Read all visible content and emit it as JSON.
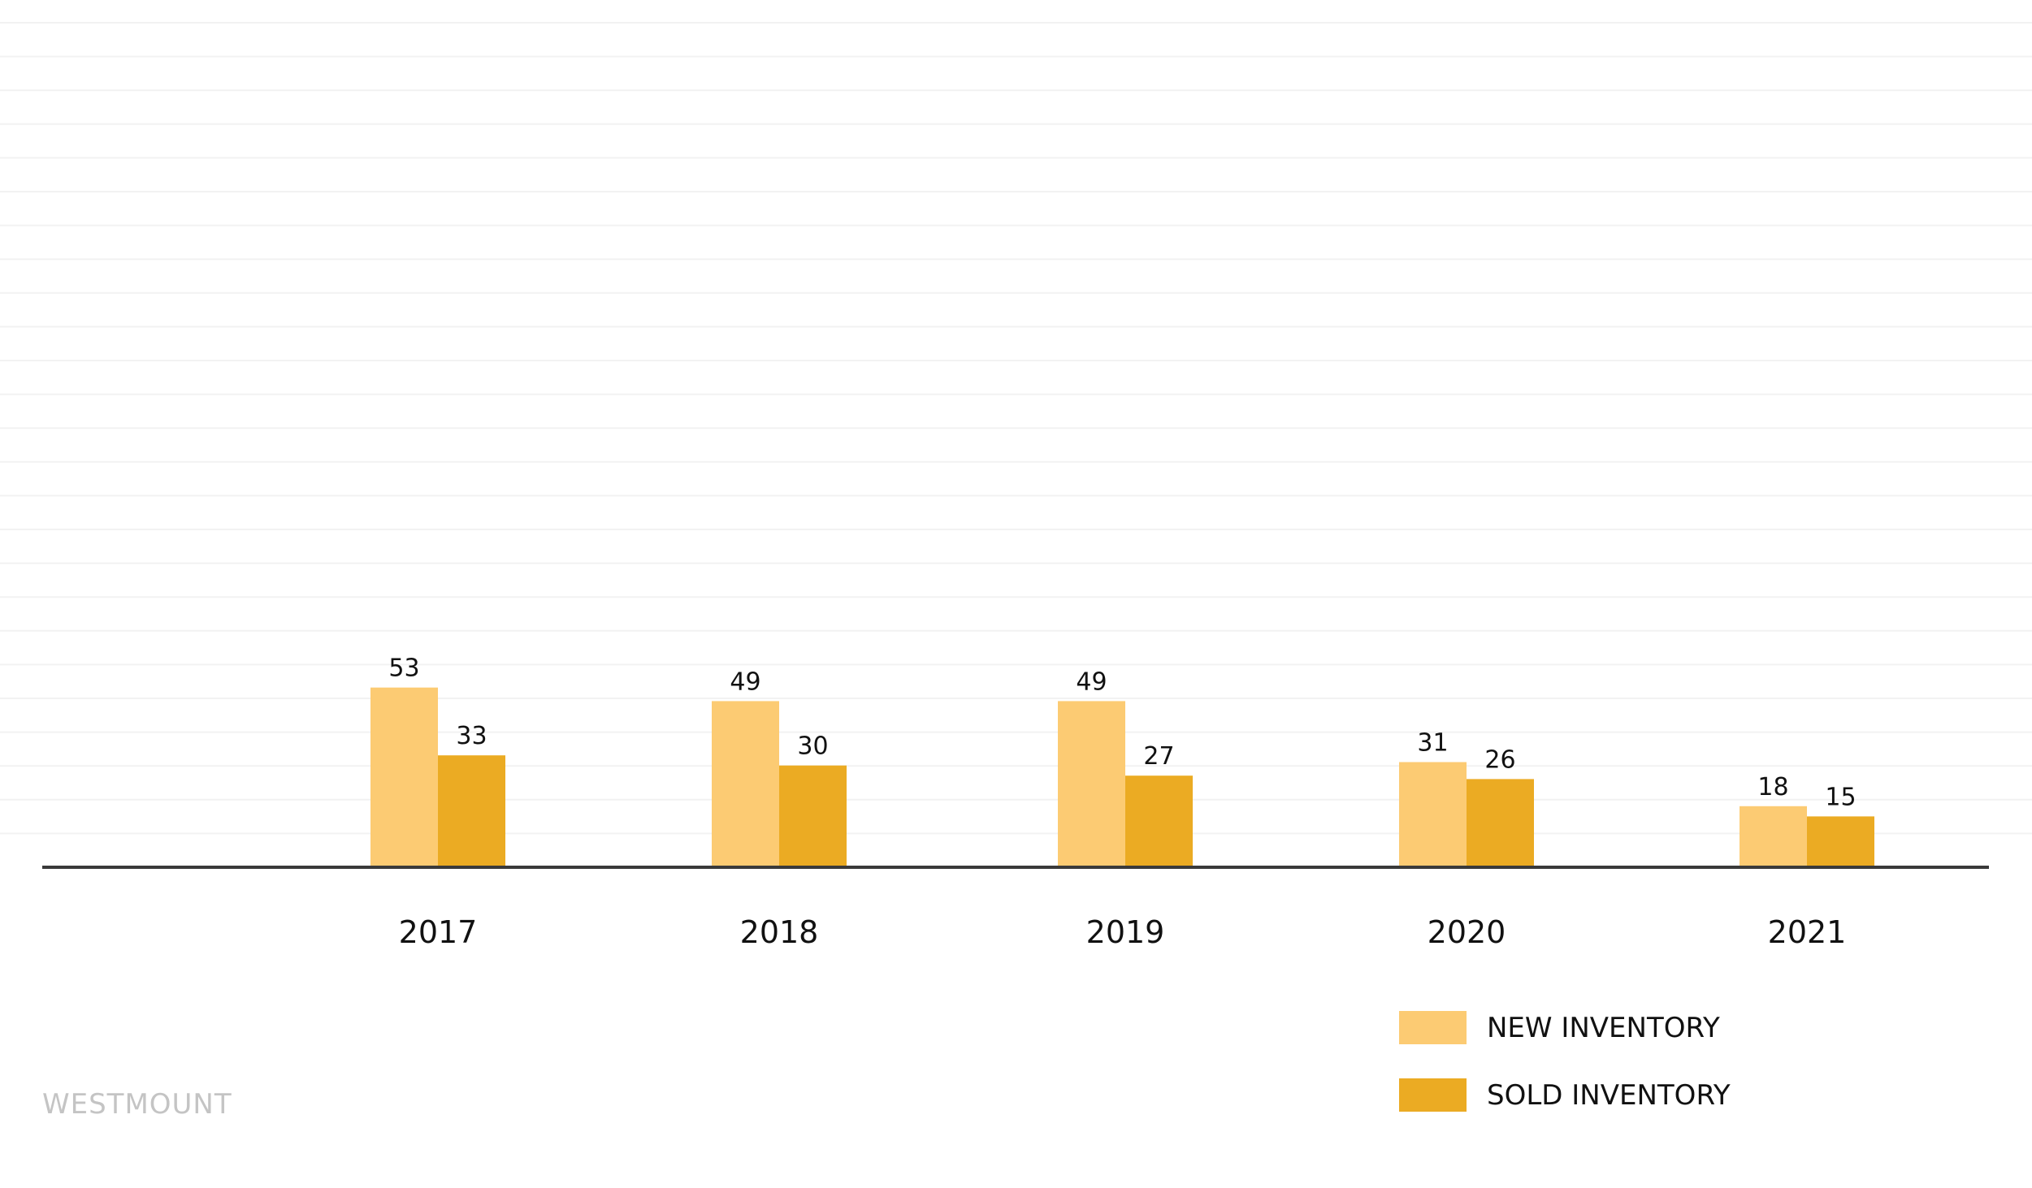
{
  "watermark": "WESTMOUNT",
  "chart_data": {
    "type": "bar",
    "title": "",
    "xlabel": "",
    "ylabel": "",
    "categories": [
      "2017",
      "2018",
      "2019",
      "2020",
      "2021"
    ],
    "series": [
      {
        "name": "NEW INVENTORY",
        "values": [
          53,
          49,
          49,
          31,
          18
        ],
        "color": "#FCCB73"
      },
      {
        "name": "SOLD INVENTORY",
        "values": [
          33,
          30,
          27,
          26,
          15
        ],
        "color": "#EBAB23"
      }
    ],
    "ylim": [
      0,
      250
    ],
    "grid": true,
    "data_labels": true,
    "legend_position": "bottom-right"
  }
}
